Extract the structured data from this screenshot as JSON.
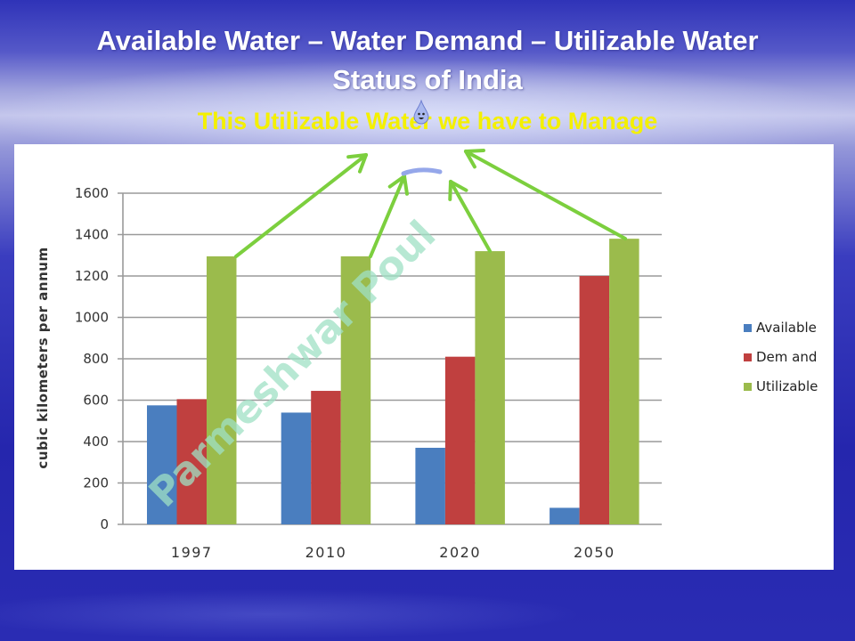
{
  "slide": {
    "title_line1": "Available Water – Water Demand – Utilizable Water",
    "title_line2": "Status of India",
    "subtitle": "This Utilizable Water  we have to Manage",
    "watermark": "Parmeshwar Poul",
    "droplet_icon": "water-droplet-mascot"
  },
  "colors": {
    "available": "#4a7ebf",
    "demand": "#c0403f",
    "utilizable": "#9bbb4c",
    "arrow": "#7ccf3e",
    "subtitle": "#f4f000",
    "watermark": "#9fe0c4"
  },
  "chart_data": {
    "type": "bar",
    "title": "",
    "xlabel": "",
    "ylabel": "cubic kilometers per annum",
    "categories": [
      "1997",
      "2010",
      "2020",
      "2050"
    ],
    "series": [
      {
        "name": "Available",
        "values": [
          575,
          540,
          370,
          80
        ]
      },
      {
        "name": "Dem and",
        "values": [
          605,
          645,
          810,
          1200
        ]
      },
      {
        "name": "Utilizable",
        "values": [
          1295,
          1295,
          1320,
          1380
        ]
      }
    ],
    "yticks": [
      "0",
      "200",
      "400",
      "600",
      "800",
      "1000",
      "1200",
      "1400",
      "1600"
    ],
    "ylim": [
      0,
      1600
    ],
    "grid": true,
    "legend_position": "right",
    "legend": [
      "Available",
      "Dem and",
      "Utilizable"
    ]
  }
}
